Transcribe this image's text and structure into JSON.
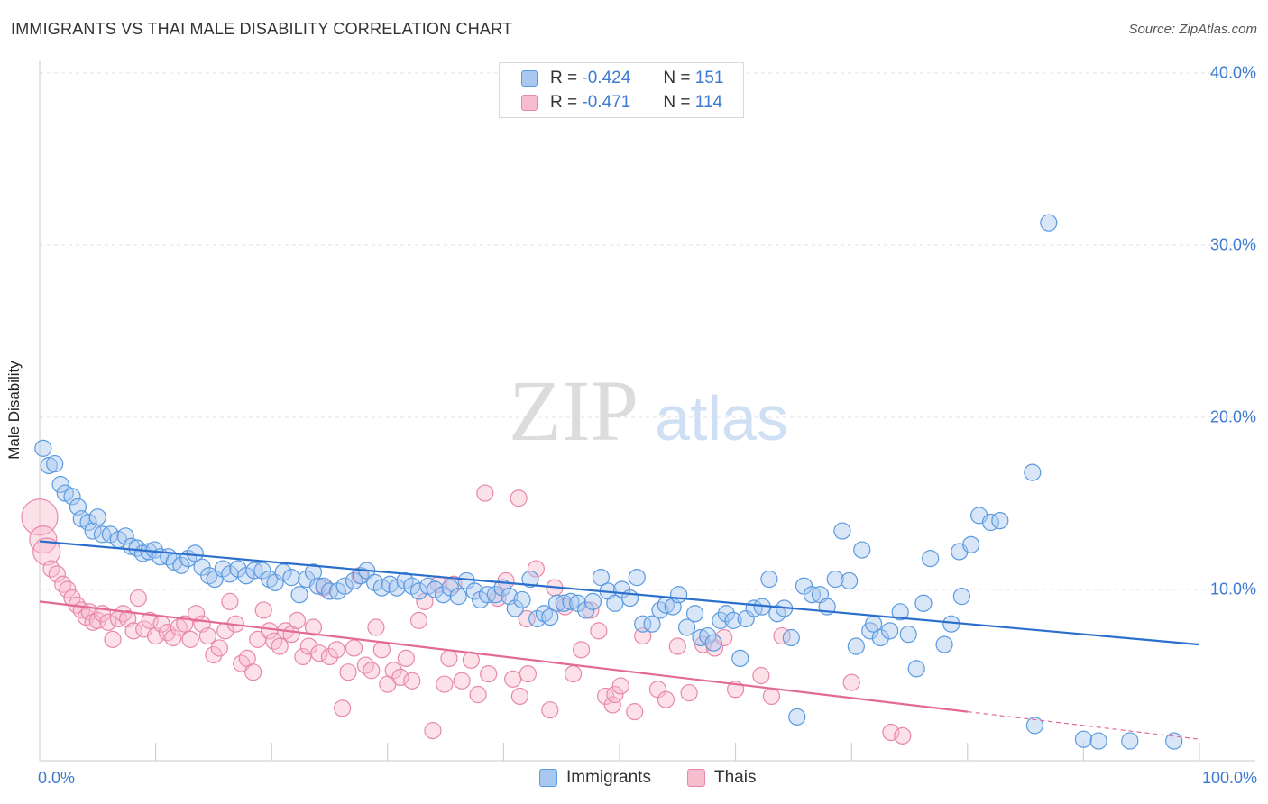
{
  "header": {
    "title": "IMMIGRANTS VS THAI MALE DISABILITY CORRELATION CHART",
    "source": "Source: ZipAtlas.com"
  },
  "watermark": {
    "zip": "ZIP",
    "atlas": "atlas"
  },
  "legend": {
    "rows": [
      {
        "r_label": "R =",
        "r_value": "-0.424",
        "n_label": "N =",
        "n_value": "151"
      },
      {
        "r_label": "R =",
        "r_value": "-0.471",
        "n_label": "N =",
        "n_value": "114"
      }
    ]
  },
  "colors": {
    "immigrants_fill": "#a8c8f0",
    "immigrants_stroke": "#5a9ae0",
    "immigrants_line": "#2a6fcc",
    "thais_fill": "#f8bccf",
    "thais_stroke": "#e888a8",
    "thais_line": "#e26a94",
    "tick_label": "#3d7bd0"
  },
  "chart_data": {
    "type": "scatter",
    "title": "IMMIGRANTS VS THAI MALE DISABILITY CORRELATION CHART",
    "xlabel": "",
    "ylabel": "Male Disability",
    "xlim": [
      0,
      100
    ],
    "ylim": [
      0,
      42
    ],
    "y_ticks": [
      "10.0%",
      "20.0%",
      "30.0%",
      "40.0%"
    ],
    "x_ticks": [
      "0.0%",
      "100.0%"
    ],
    "grid": "horizontal dashed",
    "legend_position": "top-center",
    "series": [
      {
        "name": "Immigrants",
        "r": -0.424,
        "n": 151,
        "trend": {
          "x": [
            0,
            100
          ],
          "y": [
            12.8,
            6.8
          ]
        },
        "points": [
          [
            0.3,
            18.2
          ],
          [
            0.8,
            17.2
          ],
          [
            1.3,
            17.3
          ],
          [
            1.8,
            16.1
          ],
          [
            2.2,
            15.6
          ],
          [
            2.8,
            15.4
          ],
          [
            3.3,
            14.8
          ],
          [
            3.6,
            14.1
          ],
          [
            4.2,
            13.9
          ],
          [
            4.6,
            13.4
          ],
          [
            5.0,
            14.2
          ],
          [
            5.4,
            13.2
          ],
          [
            6.1,
            13.2
          ],
          [
            6.8,
            12.9
          ],
          [
            7.4,
            13.1
          ],
          [
            7.9,
            12.5
          ],
          [
            8.4,
            12.4
          ],
          [
            8.9,
            12.1
          ],
          [
            9.4,
            12.2
          ],
          [
            9.9,
            12.3
          ],
          [
            10.4,
            11.9
          ],
          [
            11.1,
            11.9
          ],
          [
            11.6,
            11.6
          ],
          [
            12.2,
            11.4
          ],
          [
            12.8,
            11.8
          ],
          [
            13.4,
            12.1
          ],
          [
            14.0,
            11.3
          ],
          [
            14.6,
            10.8
          ],
          [
            15.1,
            10.6
          ],
          [
            15.8,
            11.2
          ],
          [
            16.4,
            10.9
          ],
          [
            17.1,
            11.2
          ],
          [
            17.8,
            10.8
          ],
          [
            18.5,
            11.1
          ],
          [
            19.2,
            11.1
          ],
          [
            19.8,
            10.6
          ],
          [
            20.3,
            10.4
          ],
          [
            21.0,
            11.0
          ],
          [
            21.7,
            10.7
          ],
          [
            22.4,
            9.7
          ],
          [
            23.0,
            10.6
          ],
          [
            23.6,
            11.0
          ],
          [
            24.0,
            10.2
          ],
          [
            24.5,
            10.2
          ],
          [
            25.0,
            9.9
          ],
          [
            25.7,
            9.9
          ],
          [
            26.3,
            10.2
          ],
          [
            27.1,
            10.5
          ],
          [
            27.7,
            10.8
          ],
          [
            28.2,
            11.1
          ],
          [
            28.9,
            10.4
          ],
          [
            29.5,
            10.1
          ],
          [
            30.2,
            10.3
          ],
          [
            30.8,
            10.1
          ],
          [
            31.5,
            10.5
          ],
          [
            32.1,
            10.2
          ],
          [
            32.7,
            9.9
          ],
          [
            33.5,
            10.2
          ],
          [
            34.1,
            10.0
          ],
          [
            34.8,
            9.7
          ],
          [
            35.4,
            10.1
          ],
          [
            36.1,
            9.6
          ],
          [
            36.8,
            10.5
          ],
          [
            37.5,
            9.9
          ],
          [
            38.0,
            9.4
          ],
          [
            38.6,
            9.7
          ],
          [
            39.3,
            9.7
          ],
          [
            39.9,
            10.1
          ],
          [
            40.5,
            9.6
          ],
          [
            41.0,
            8.9
          ],
          [
            41.6,
            9.4
          ],
          [
            42.3,
            10.6
          ],
          [
            42.9,
            8.3
          ],
          [
            43.5,
            8.6
          ],
          [
            44.0,
            8.4
          ],
          [
            44.6,
            9.2
          ],
          [
            45.2,
            9.2
          ],
          [
            45.8,
            9.3
          ],
          [
            46.4,
            9.2
          ],
          [
            47.1,
            8.8
          ],
          [
            47.7,
            9.3
          ],
          [
            48.4,
            10.7
          ],
          [
            49.0,
            9.9
          ],
          [
            49.6,
            9.2
          ],
          [
            50.2,
            10.0
          ],
          [
            50.9,
            9.5
          ],
          [
            51.5,
            10.7
          ],
          [
            52.0,
            8.0
          ],
          [
            52.8,
            8.0
          ],
          [
            53.5,
            8.8
          ],
          [
            54.0,
            9.1
          ],
          [
            54.6,
            9.0
          ],
          [
            55.1,
            9.7
          ],
          [
            55.8,
            7.8
          ],
          [
            56.5,
            8.6
          ],
          [
            57.0,
            7.2
          ],
          [
            57.6,
            7.3
          ],
          [
            58.1,
            6.9
          ],
          [
            58.7,
            8.2
          ],
          [
            59.2,
            8.6
          ],
          [
            59.8,
            8.2
          ],
          [
            60.4,
            6.0
          ],
          [
            60.9,
            8.3
          ],
          [
            61.6,
            8.9
          ],
          [
            62.3,
            9.0
          ],
          [
            62.9,
            10.6
          ],
          [
            63.6,
            8.6
          ],
          [
            64.2,
            8.9
          ],
          [
            64.8,
            7.2
          ],
          [
            65.3,
            2.6
          ],
          [
            65.9,
            10.2
          ],
          [
            66.6,
            9.7
          ],
          [
            67.3,
            9.7
          ],
          [
            67.9,
            9.0
          ],
          [
            68.6,
            10.6
          ],
          [
            69.2,
            13.4
          ],
          [
            69.8,
            10.5
          ],
          [
            70.4,
            6.7
          ],
          [
            70.9,
            12.3
          ],
          [
            71.6,
            7.6
          ],
          [
            71.9,
            8.0
          ],
          [
            72.5,
            7.2
          ],
          [
            73.3,
            7.6
          ],
          [
            74.2,
            8.7
          ],
          [
            74.9,
            7.4
          ],
          [
            75.6,
            5.4
          ],
          [
            76.2,
            9.2
          ],
          [
            76.8,
            11.8
          ],
          [
            78.0,
            6.8
          ],
          [
            78.6,
            8.0
          ],
          [
            79.3,
            12.2
          ],
          [
            79.5,
            9.6
          ],
          [
            80.3,
            12.6
          ],
          [
            81.0,
            14.3
          ],
          [
            82.0,
            13.9
          ],
          [
            82.8,
            14.0
          ],
          [
            87.0,
            31.3
          ],
          [
            85.6,
            16.8
          ],
          [
            85.8,
            2.1
          ],
          [
            90.0,
            1.3
          ],
          [
            91.3,
            1.2
          ],
          [
            94.0,
            1.2
          ],
          [
            97.8,
            1.2
          ]
        ]
      },
      {
        "name": "Thais",
        "r": -0.471,
        "n": 114,
        "trend": {
          "x": [
            0,
            80
          ],
          "y": [
            9.3,
            2.9
          ],
          "dashed_extension_to_x": 100,
          "dashed_extension_y": 1.3
        },
        "points": [
          [
            0.0,
            14.2
          ],
          [
            0.3,
            12.9
          ],
          [
            0.6,
            12.2
          ],
          [
            1.0,
            11.2
          ],
          [
            1.5,
            10.9
          ],
          [
            2.0,
            10.3
          ],
          [
            2.4,
            10.0
          ],
          [
            2.8,
            9.5
          ],
          [
            3.2,
            9.1
          ],
          [
            3.6,
            8.8
          ],
          [
            4.0,
            8.4
          ],
          [
            4.3,
            8.7
          ],
          [
            4.6,
            8.1
          ],
          [
            5.0,
            8.2
          ],
          [
            5.4,
            8.6
          ],
          [
            5.9,
            8.1
          ],
          [
            6.3,
            7.1
          ],
          [
            6.8,
            8.3
          ],
          [
            7.2,
            8.6
          ],
          [
            7.6,
            8.3
          ],
          [
            8.1,
            7.6
          ],
          [
            8.5,
            9.5
          ],
          [
            9.0,
            7.7
          ],
          [
            9.5,
            8.2
          ],
          [
            10.0,
            7.3
          ],
          [
            10.5,
            8.0
          ],
          [
            11.0,
            7.5
          ],
          [
            11.5,
            7.2
          ],
          [
            12.0,
            7.8
          ],
          [
            12.5,
            8.0
          ],
          [
            13.0,
            7.1
          ],
          [
            13.5,
            8.6
          ],
          [
            14.0,
            8.0
          ],
          [
            14.5,
            7.3
          ],
          [
            15.0,
            6.2
          ],
          [
            15.5,
            6.6
          ],
          [
            16.0,
            7.6
          ],
          [
            16.4,
            9.3
          ],
          [
            16.9,
            8.0
          ],
          [
            17.4,
            5.7
          ],
          [
            17.9,
            6.0
          ],
          [
            18.4,
            5.2
          ],
          [
            18.8,
            7.1
          ],
          [
            19.3,
            8.8
          ],
          [
            19.8,
            7.6
          ],
          [
            20.2,
            7.0
          ],
          [
            20.7,
            6.7
          ],
          [
            21.2,
            7.6
          ],
          [
            21.7,
            7.4
          ],
          [
            22.2,
            8.2
          ],
          [
            22.7,
            6.1
          ],
          [
            23.2,
            6.7
          ],
          [
            23.6,
            7.8
          ],
          [
            24.1,
            6.3
          ],
          [
            24.5,
            10.1
          ],
          [
            25.0,
            6.1
          ],
          [
            25.6,
            6.5
          ],
          [
            26.1,
            3.1
          ],
          [
            26.6,
            5.2
          ],
          [
            27.1,
            6.6
          ],
          [
            27.6,
            10.8
          ],
          [
            28.1,
            5.6
          ],
          [
            28.6,
            5.3
          ],
          [
            29.0,
            7.8
          ],
          [
            29.5,
            6.5
          ],
          [
            30.0,
            4.5
          ],
          [
            30.5,
            5.3
          ],
          [
            31.1,
            4.9
          ],
          [
            31.6,
            6.0
          ],
          [
            32.1,
            4.7
          ],
          [
            32.7,
            8.2
          ],
          [
            33.2,
            9.3
          ],
          [
            33.9,
            1.8
          ],
          [
            34.4,
            10.3
          ],
          [
            34.9,
            4.5
          ],
          [
            35.3,
            6.0
          ],
          [
            35.7,
            10.3
          ],
          [
            36.4,
            4.7
          ],
          [
            37.2,
            5.9
          ],
          [
            37.8,
            3.9
          ],
          [
            38.4,
            15.6
          ],
          [
            38.7,
            5.1
          ],
          [
            39.5,
            9.5
          ],
          [
            40.2,
            10.5
          ],
          [
            40.8,
            4.8
          ],
          [
            41.3,
            15.3
          ],
          [
            41.4,
            3.8
          ],
          [
            42.1,
            5.1
          ],
          [
            42.8,
            11.2
          ],
          [
            42.0,
            8.3
          ],
          [
            44.0,
            3.0
          ],
          [
            44.4,
            10.1
          ],
          [
            45.3,
            9.0
          ],
          [
            46.0,
            5.1
          ],
          [
            46.7,
            6.5
          ],
          [
            47.5,
            8.8
          ],
          [
            48.2,
            7.6
          ],
          [
            48.8,
            3.8
          ],
          [
            49.4,
            3.3
          ],
          [
            49.6,
            3.9
          ],
          [
            50.1,
            4.4
          ],
          [
            51.3,
            2.9
          ],
          [
            52.0,
            7.3
          ],
          [
            53.3,
            4.2
          ],
          [
            54.0,
            3.6
          ],
          [
            55.0,
            6.7
          ],
          [
            56.0,
            4.0
          ],
          [
            57.2,
            6.8
          ],
          [
            58.2,
            6.6
          ],
          [
            59.0,
            7.2
          ],
          [
            60.0,
            4.2
          ],
          [
            62.2,
            5.0
          ],
          [
            63.1,
            3.8
          ],
          [
            64.0,
            7.3
          ],
          [
            70.0,
            4.6
          ],
          [
            73.4,
            1.7
          ],
          [
            74.4,
            1.5
          ]
        ]
      }
    ]
  },
  "bottom_legend": {
    "items": [
      {
        "label": "Immigrants"
      },
      {
        "label": "Thais"
      }
    ]
  }
}
